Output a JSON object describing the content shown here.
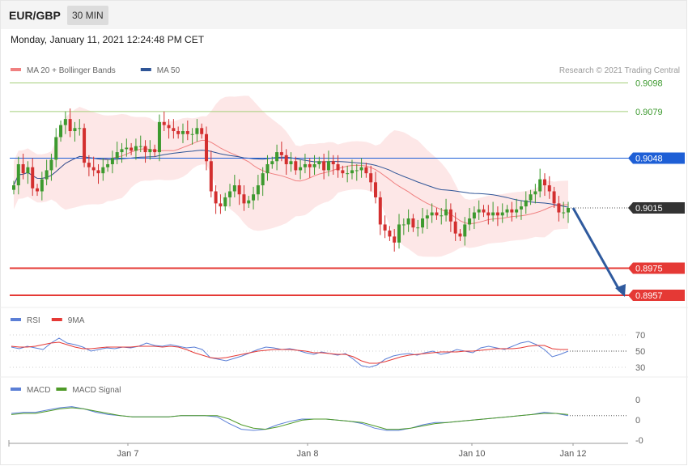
{
  "header": {
    "symbol": "EUR/GBP",
    "interval": "30 MIN",
    "datetime": "Monday, January 11, 2021 12:24:48 PM CET"
  },
  "legend": {
    "main": [
      {
        "label": "MA 20 + Bollinger Bands",
        "color": "#f08080"
      },
      {
        "label": "MA 50",
        "color": "#2f5597"
      }
    ],
    "rsi": [
      {
        "label": "RSI",
        "color": "#5b7fd6"
      },
      {
        "label": "9MA",
        "color": "#e53935"
      }
    ],
    "macd": [
      {
        "label": "MACD",
        "color": "#5b7fd6"
      },
      {
        "label": "MACD Signal",
        "color": "#4e9a28"
      }
    ]
  },
  "copyright": "Research © 2021 Trading Central",
  "colors": {
    "up": "#3d9a2f",
    "down": "#d32f2f",
    "band_fill": "#fde3e3",
    "resistance_green": "#a5cf7a",
    "pivot_blue": "#1e5fd6",
    "support_red": "#e53935",
    "current": "#333333",
    "arrow": "#2f5a9e"
  },
  "chart_data": [
    {
      "type": "line",
      "title": "",
      "x_labels": [
        "Jan 7",
        "Jan 8",
        "Jan 10",
        "Jan 12"
      ],
      "ylim": [
        0.895,
        0.9102
      ],
      "levels": [
        {
          "label": "0.9098",
          "value": 0.9098,
          "kind": "resistance"
        },
        {
          "label": "0.9079",
          "value": 0.9079,
          "kind": "resistance"
        },
        {
          "label": "0.9048",
          "value": 0.9048,
          "kind": "pivot"
        },
        {
          "label": "0.9015",
          "value": 0.9015,
          "kind": "current"
        },
        {
          "label": "0.8975",
          "value": 0.8975,
          "kind": "support"
        },
        {
          "label": "0.8957",
          "value": 0.8957,
          "kind": "support"
        }
      ],
      "close_series": [
        0.903,
        0.9044,
        0.9038,
        0.9042,
        0.9028,
        0.9026,
        0.9034,
        0.904,
        0.9047,
        0.9062,
        0.907,
        0.9074,
        0.9066,
        0.9068,
        0.9068,
        0.9045,
        0.9042,
        0.904,
        0.9038,
        0.9042,
        0.9044,
        0.9048,
        0.9052,
        0.9054,
        0.9055,
        0.9053,
        0.9056,
        0.9056,
        0.9052,
        0.9054,
        0.9052,
        0.9072,
        0.907,
        0.9068,
        0.9066,
        0.9064,
        0.9066,
        0.9064,
        0.9064,
        0.9068,
        0.9064,
        0.9046,
        0.9026,
        0.9018,
        0.9016,
        0.9022,
        0.9026,
        0.903,
        0.9024,
        0.9018,
        0.902,
        0.9024,
        0.903,
        0.9038,
        0.9044,
        0.9046,
        0.9052,
        0.905,
        0.9044,
        0.9046,
        0.904,
        0.9042,
        0.9044,
        0.9042,
        0.9044,
        0.9046,
        0.904,
        0.9046,
        0.9044,
        0.904,
        0.9038,
        0.9038,
        0.904,
        0.904,
        0.9042,
        0.9038,
        0.9032,
        0.9022,
        0.9004,
        0.9,
        0.8996,
        0.8992,
        0.9004,
        0.9004,
        0.9008,
        0.9002,
        0.9002,
        0.9008,
        0.901,
        0.9012,
        0.901,
        0.901,
        0.9014,
        0.9006,
        0.8998,
        0.8996,
        0.9004,
        0.9008,
        0.9012,
        0.9014,
        0.9012,
        0.901,
        0.9012,
        0.901,
        0.9012,
        0.9014,
        0.9012,
        0.9014,
        0.9016,
        0.902,
        0.9024,
        0.9026,
        0.9034,
        0.903,
        0.9026,
        0.9018,
        0.9012,
        0.9012,
        0.9015
      ]
    },
    {
      "type": "line",
      "title": "",
      "ylim": [
        20,
        80
      ],
      "y_ticks": [
        70,
        50,
        30
      ],
      "y_tick_labels": [
        "70",
        "50",
        "30"
      ],
      "series": [
        {
          "name": "RSI",
          "values": [
            55,
            53,
            56,
            54,
            52,
            60,
            66,
            60,
            58,
            55,
            50,
            52,
            54,
            53,
            55,
            54,
            56,
            60,
            57,
            56,
            58,
            56,
            54,
            55,
            52,
            42,
            40,
            38,
            41,
            44,
            48,
            52,
            55,
            54,
            52,
            53,
            51,
            48,
            46,
            49,
            47,
            45,
            47,
            40,
            32,
            30,
            33,
            40,
            44,
            46,
            47,
            45,
            48,
            50,
            46,
            48,
            52,
            50,
            48,
            54,
            56,
            54,
            52,
            56,
            60,
            62,
            58,
            52,
            43,
            46,
            50
          ]
        },
        {
          "name": "9MA",
          "values": [
            56,
            55,
            55,
            56,
            58,
            60,
            61,
            58,
            55,
            53,
            53,
            54,
            55,
            55,
            55,
            55,
            56,
            56,
            56,
            55,
            56,
            55,
            52,
            48,
            45,
            42,
            41,
            42,
            44,
            46,
            48,
            50,
            51,
            52,
            52,
            52,
            51,
            50,
            48,
            48,
            47,
            46,
            46,
            43,
            38,
            35,
            35,
            37,
            40,
            43,
            45,
            46,
            47,
            48,
            49,
            49,
            49,
            50,
            50,
            51,
            52,
            53,
            53,
            53,
            54,
            56,
            57,
            57,
            53,
            52,
            52
          ]
        }
      ]
    },
    {
      "type": "line",
      "title": "",
      "y_tick_labels": [
        "0",
        "0",
        "-0"
      ],
      "series": [
        {
          "name": "MACD",
          "values": [
            0.5,
            0.6,
            0.6,
            0.8,
            1.0,
            1.1,
            0.9,
            0.6,
            0.4,
            0.3,
            0.2,
            0.2,
            0.2,
            0.2,
            0.3,
            0.3,
            0.3,
            0.2,
            -0.4,
            -0.9,
            -1.0,
            -0.9,
            -0.5,
            -0.2,
            0.0,
            0.0,
            0.0,
            -0.1,
            -0.2,
            -0.4,
            -0.8,
            -1.0,
            -1.0,
            -0.8,
            -0.5,
            -0.3,
            -0.3,
            -0.2,
            -0.1,
            0.0,
            0.1,
            0.2,
            0.3,
            0.4,
            0.6,
            0.5,
            0.3
          ]
        },
        {
          "name": "MACD Signal",
          "values": [
            0.4,
            0.5,
            0.5,
            0.7,
            0.9,
            1.0,
            0.9,
            0.7,
            0.5,
            0.3,
            0.2,
            0.2,
            0.2,
            0.2,
            0.3,
            0.3,
            0.3,
            0.3,
            0.0,
            -0.5,
            -0.8,
            -0.9,
            -0.7,
            -0.4,
            -0.1,
            0.0,
            0.0,
            -0.1,
            -0.2,
            -0.3,
            -0.6,
            -0.9,
            -0.9,
            -0.8,
            -0.6,
            -0.4,
            -0.3,
            -0.2,
            -0.1,
            0.0,
            0.1,
            0.2,
            0.3,
            0.4,
            0.5,
            0.5,
            0.4
          ]
        }
      ]
    }
  ]
}
